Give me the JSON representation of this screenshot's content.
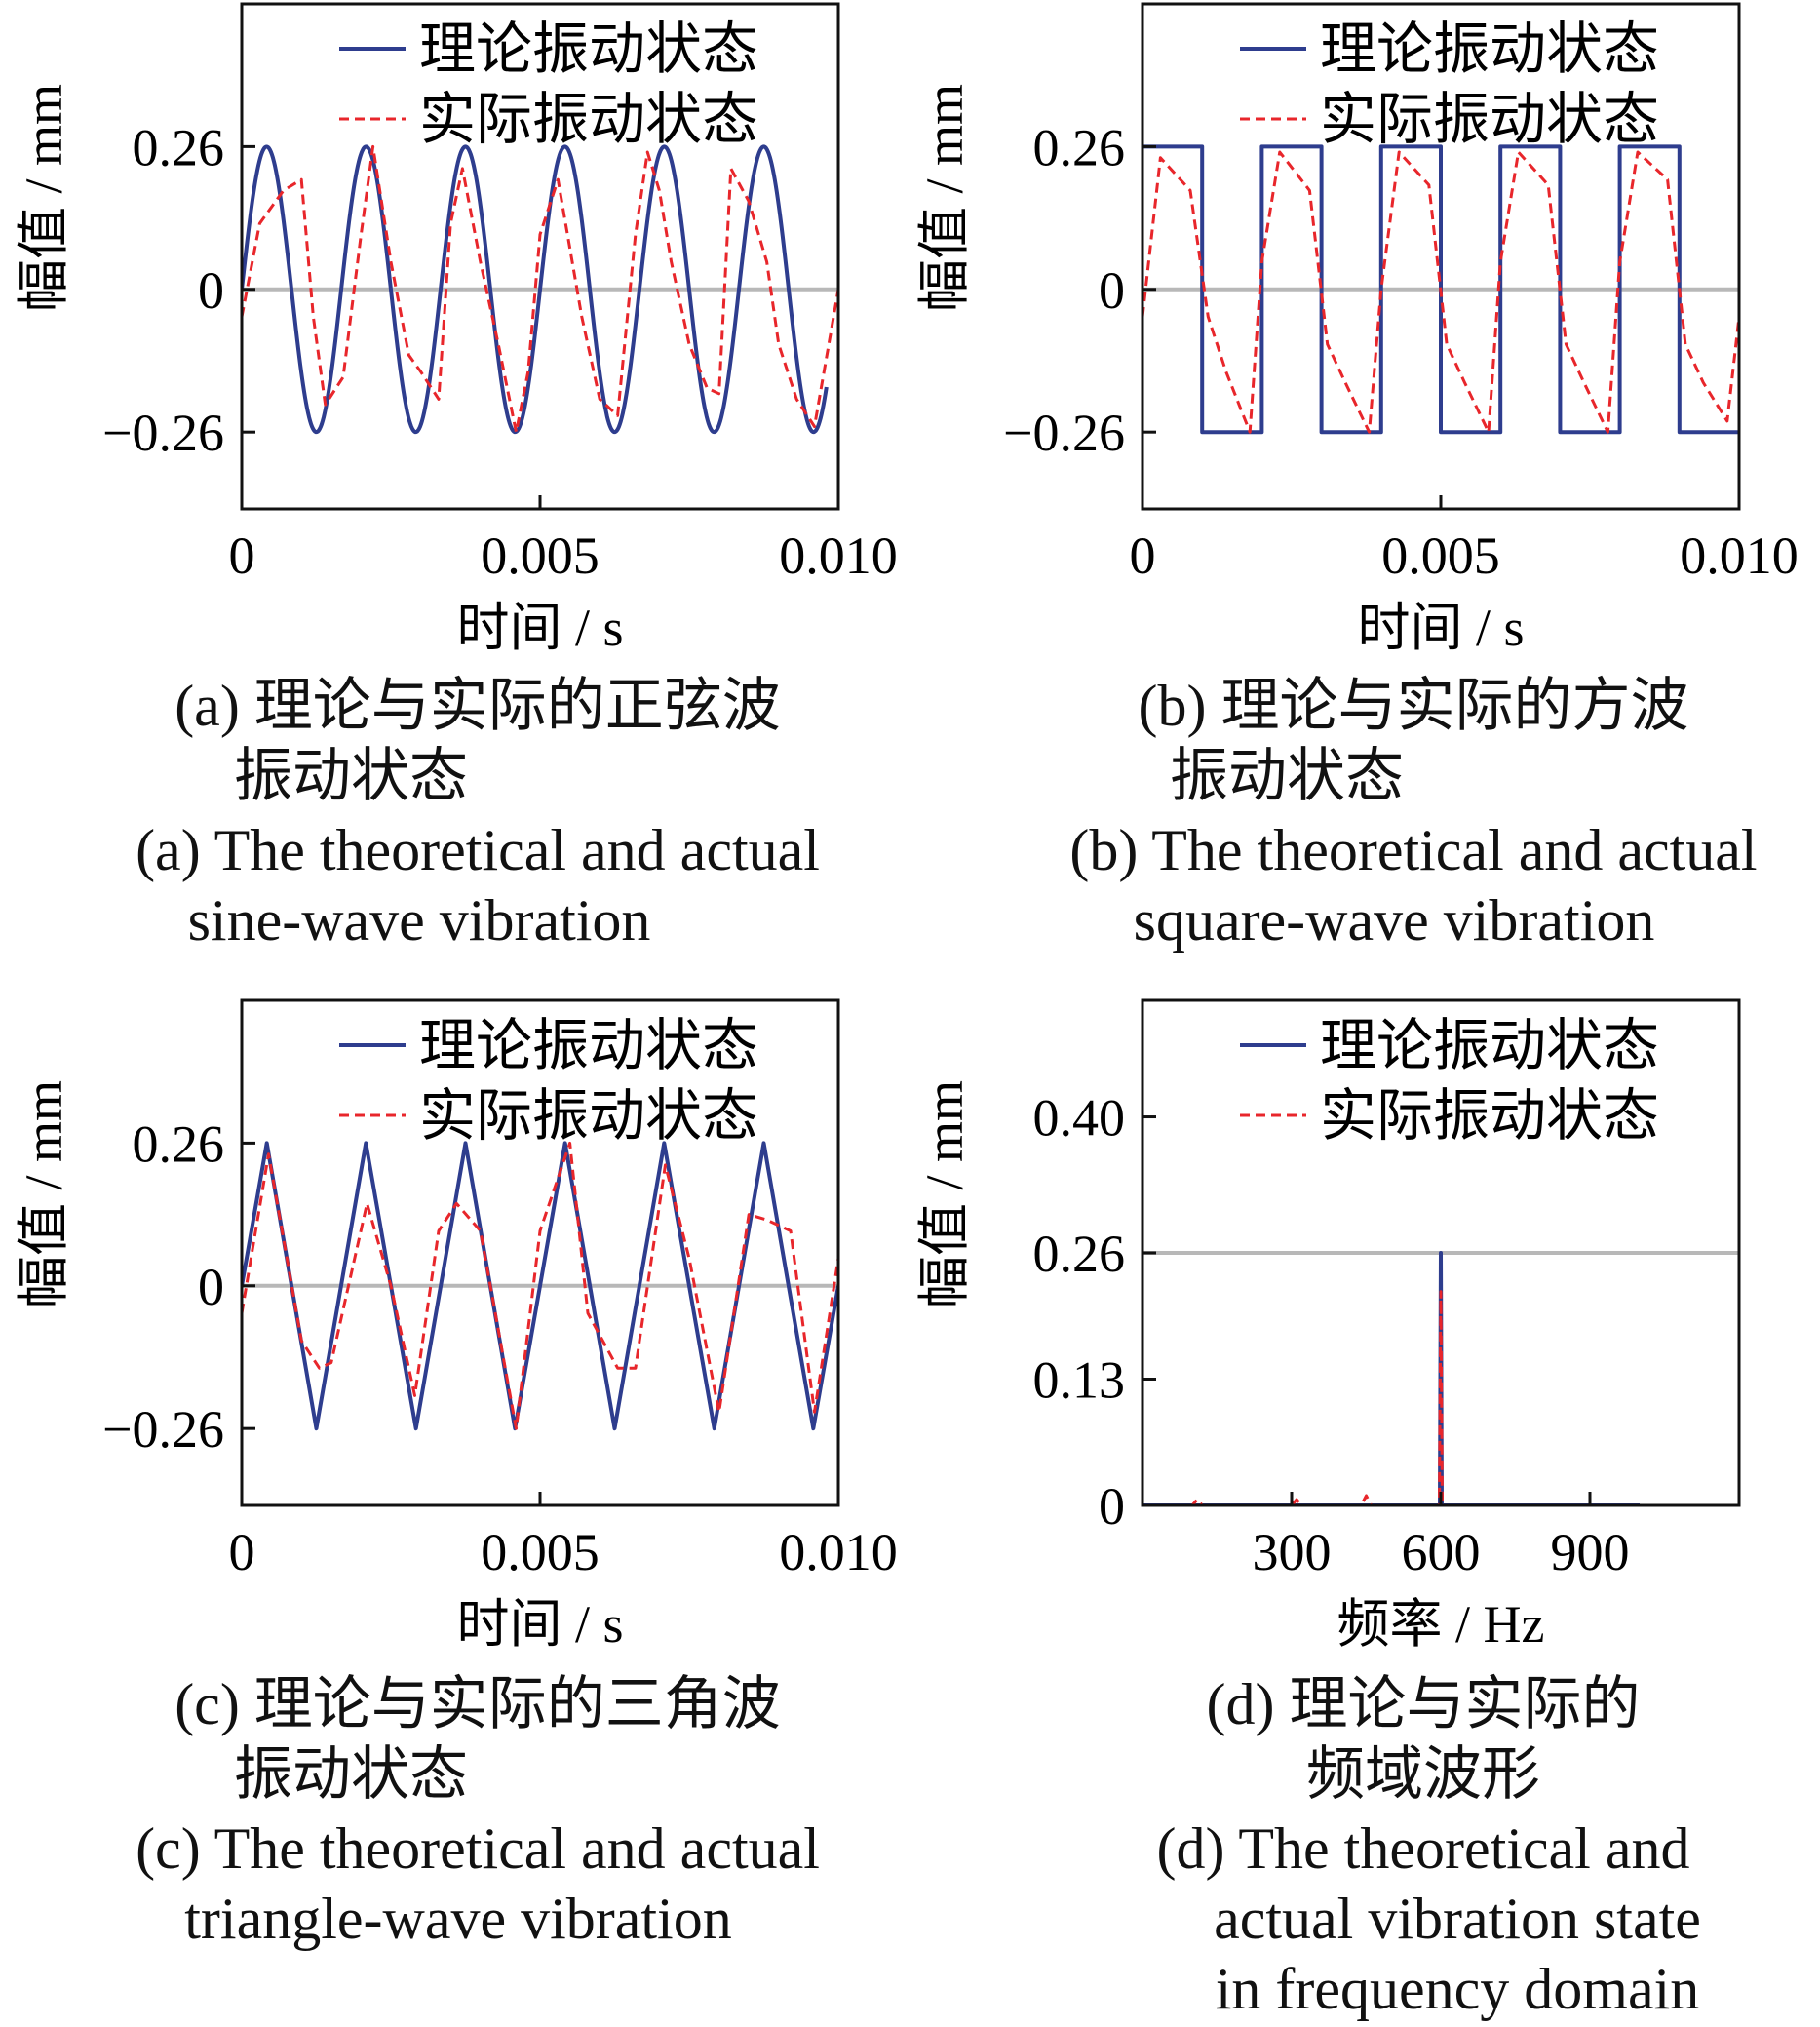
{
  "colors": {
    "theoretical": "#2e3d8e",
    "actual": "#e8262b",
    "reference": "#b8b8b8",
    "axis": "#111111"
  },
  "legend": {
    "theoretical": "理论振动状态",
    "actual": "实际振动状态"
  },
  "captions": {
    "a": {
      "cn": [
        "(a) 理论与实际的正弦波",
        "振动状态"
      ],
      "en": [
        "(a) The theoretical and actual",
        "sine-wave vibration"
      ]
    },
    "b": {
      "cn": [
        "(b) 理论与实际的方波",
        "振动状态"
      ],
      "en": [
        "(b) The theoretical and actual",
        "square-wave vibration"
      ]
    },
    "c": {
      "cn": [
        "(c) 理论与实际的三角波",
        "振动状态"
      ],
      "en": [
        "(c) The theoretical and actual",
        "triangle-wave vibration"
      ]
    },
    "d": {
      "cn": [
        "(d) 理论与实际的",
        "频域波形"
      ],
      "en": [
        "(d) The theoretical and",
        "actual vibration state",
        "in frequency domain"
      ]
    }
  },
  "chart_data": [
    {
      "id": "a",
      "type": "line",
      "xlabel": "时间 / s",
      "ylabel": "幅值 / mm",
      "xlim": [
        0,
        0.01
      ],
      "ylim": [
        -0.4,
        0.52
      ],
      "xticks": [
        0,
        0.005,
        0.01
      ],
      "xticklabels": [
        "0",
        "0.005",
        "0.010"
      ],
      "yticks": [
        -0.26,
        0,
        0.26
      ],
      "yticklabels": [
        "−0.26",
        "0",
        "0.26"
      ],
      "reference_lines": [
        0
      ],
      "legend_position": "top-right",
      "series": [
        {
          "name": "理论振动状态",
          "style": "solid",
          "waveform": "sine",
          "amplitude": 0.26,
          "frequency_hz": 600,
          "x_range": [
            0,
            0.0098
          ]
        },
        {
          "name": "实际振动状态",
          "style": "dashed",
          "x": [
            0,
            0.0003,
            0.0007,
            0.001,
            0.0012,
            0.0014,
            0.0017,
            0.002,
            0.0022,
            0.0025,
            0.0028,
            0.003,
            0.0033,
            0.0035,
            0.0037,
            0.004,
            0.0043,
            0.0046,
            0.0048,
            0.005,
            0.0053,
            0.0057,
            0.006,
            0.0063,
            0.0066,
            0.0068,
            0.007,
            0.0072,
            0.0075,
            0.0078,
            0.008,
            0.0082,
            0.0085,
            0.0088,
            0.009,
            0.0093,
            0.0096,
            0.01
          ],
          "y": [
            -0.05,
            0.12,
            0.18,
            0.2,
            -0.05,
            -0.21,
            -0.16,
            0.1,
            0.26,
            0.05,
            -0.12,
            -0.15,
            -0.2,
            0.12,
            0.22,
            0.05,
            -0.1,
            -0.26,
            -0.15,
            0.1,
            0.2,
            -0.05,
            -0.2,
            -0.23,
            0.1,
            0.25,
            0.18,
            0.05,
            -0.1,
            -0.18,
            -0.19,
            0.22,
            0.16,
            0.05,
            -0.1,
            -0.2,
            -0.25,
            0.0
          ]
        }
      ]
    },
    {
      "id": "b",
      "type": "line",
      "xlabel": "时间 / s",
      "ylabel": "幅值 / mm",
      "xlim": [
        0,
        0.01
      ],
      "ylim": [
        -0.4,
        0.52
      ],
      "xticks": [
        0,
        0.005,
        0.01
      ],
      "xticklabels": [
        "0",
        "0.005",
        "0.010"
      ],
      "yticks": [
        -0.26,
        0,
        0.26
      ],
      "yticklabels": [
        "−0.26",
        "0",
        "0.26"
      ],
      "reference_lines": [
        0
      ],
      "legend_position": "top-right",
      "series": [
        {
          "name": "理论振动状态",
          "style": "solid",
          "waveform": "square",
          "amplitude": 0.26,
          "frequency_hz": 500,
          "x_range": [
            0,
            0.01
          ]
        },
        {
          "name": "实际振动状态",
          "style": "dashed",
          "x": [
            0,
            0.0003,
            0.0008,
            0.0011,
            0.0014,
            0.0018,
            0.002,
            0.0023,
            0.0028,
            0.0031,
            0.0034,
            0.0038,
            0.004,
            0.0043,
            0.0048,
            0.0051,
            0.0054,
            0.0058,
            0.006,
            0.0063,
            0.0068,
            0.0071,
            0.0074,
            0.0078,
            0.008,
            0.0083,
            0.0088,
            0.0091,
            0.0094,
            0.0098,
            0.01
          ],
          "y": [
            -0.05,
            0.24,
            0.18,
            -0.05,
            -0.15,
            -0.26,
            0.05,
            0.25,
            0.18,
            -0.1,
            -0.17,
            -0.26,
            0.0,
            0.25,
            0.19,
            -0.1,
            -0.17,
            -0.26,
            0.05,
            0.25,
            0.19,
            -0.1,
            -0.17,
            -0.26,
            0.05,
            0.25,
            0.2,
            -0.1,
            -0.17,
            -0.24,
            -0.05
          ]
        }
      ]
    },
    {
      "id": "c",
      "type": "line",
      "xlabel": "时间 / s",
      "ylabel": "幅值 / mm",
      "xlim": [
        0,
        0.01
      ],
      "ylim": [
        -0.4,
        0.52
      ],
      "xticks": [
        0,
        0.005,
        0.01
      ],
      "xticklabels": [
        "0",
        "0.005",
        "0.010"
      ],
      "yticks": [
        -0.26,
        0,
        0.26
      ],
      "yticklabels": [
        "−0.26",
        "0",
        "0.26"
      ],
      "reference_lines": [
        0
      ],
      "legend_position": "top-right",
      "series": [
        {
          "name": "理论振动状态",
          "style": "solid",
          "waveform": "triangle",
          "x": [
            0,
            0.00042,
            0.00125,
            0.00208,
            0.00292,
            0.00375,
            0.00458,
            0.00542,
            0.00625,
            0.00708,
            0.00792,
            0.00875,
            0.00958,
            0.01
          ],
          "y": [
            0,
            0.26,
            -0.26,
            0.26,
            -0.26,
            0.26,
            -0.26,
            0.26,
            -0.26,
            0.26,
            -0.26,
            0.26,
            -0.26,
            0.0
          ]
        },
        {
          "name": "实际振动状态",
          "style": "dashed",
          "x": [
            0,
            0.00045,
            0.001,
            0.0013,
            0.0015,
            0.0021,
            0.0025,
            0.0029,
            0.0033,
            0.0036,
            0.004,
            0.0046,
            0.005,
            0.0055,
            0.0058,
            0.0063,
            0.0066,
            0.0071,
            0.0075,
            0.008,
            0.0085,
            0.0088,
            0.0092,
            0.0096,
            0.01
          ],
          "y": [
            -0.05,
            0.24,
            -0.1,
            -0.15,
            -0.14,
            0.15,
            0.0,
            -0.2,
            0.1,
            0.15,
            0.1,
            -0.26,
            0.1,
            0.26,
            -0.05,
            -0.15,
            -0.15,
            0.22,
            0.05,
            -0.23,
            0.13,
            0.12,
            0.1,
            -0.23,
            0.05
          ]
        }
      ]
    },
    {
      "id": "d",
      "type": "line",
      "xlabel": "频率 / Hz",
      "ylabel": "幅值 / mm",
      "xlim": [
        0,
        1200
      ],
      "ylim": [
        0,
        0.52
      ],
      "xticks": [
        300,
        600,
        900
      ],
      "xticklabels": [
        "300",
        "600",
        "900"
      ],
      "yticks": [
        0,
        0.13,
        0.26,
        0.4
      ],
      "yticklabels": [
        "0",
        "0.13",
        "0.26",
        "0.40"
      ],
      "reference_lines": [
        0.26
      ],
      "legend_position": "top-right",
      "series": [
        {
          "name": "理论振动状态",
          "style": "solid",
          "x": [
            0,
            598,
            600,
            602,
            1000
          ],
          "y": [
            0,
            0,
            0.26,
            0,
            0
          ]
        },
        {
          "name": "实际振动状态",
          "style": "dashed",
          "x": [
            0,
            100,
            110,
            120,
            300,
            310,
            320,
            440,
            450,
            460,
            597,
            600,
            603,
            1000
          ],
          "y": [
            0,
            0,
            0.006,
            0,
            0,
            0.006,
            0,
            0,
            0.01,
            0,
            0,
            0.22,
            0,
            0
          ]
        }
      ]
    }
  ]
}
